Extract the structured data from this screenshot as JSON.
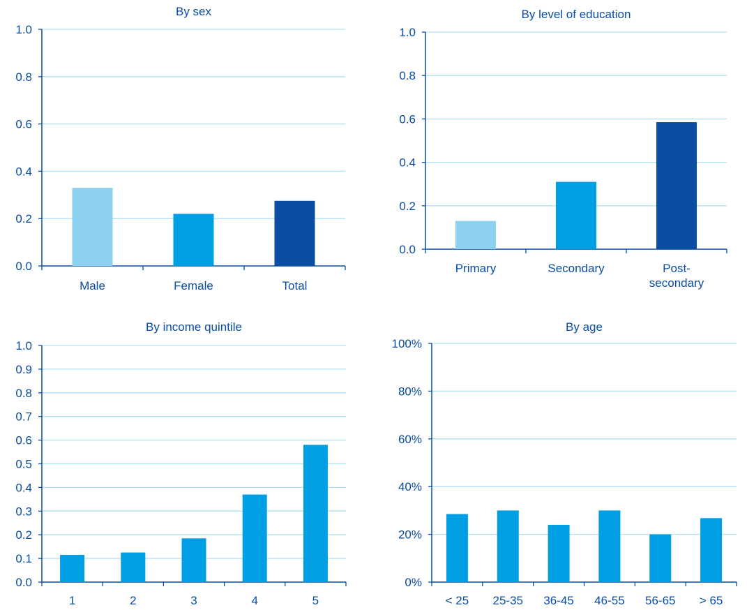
{
  "colors": {
    "axis": "#0a4da2",
    "grid": "#b3e0f2",
    "text": "#0a4da2",
    "light": "#8dd1f0",
    "mid": "#009ee3",
    "dark": "#0a4da2"
  },
  "chart_data": [
    {
      "type": "bar",
      "title": "By sex",
      "categories": [
        "Male",
        "Female",
        "Total"
      ],
      "values": [
        0.33,
        0.22,
        0.275
      ],
      "bar_colors": [
        "light",
        "mid",
        "dark"
      ],
      "ylim": [
        0,
        1.0
      ],
      "yticks": [
        "0.0",
        "0.2",
        "0.4",
        "0.6",
        "0.8",
        "1.0"
      ],
      "grid": true
    },
    {
      "type": "bar",
      "title": "By level of education",
      "categories": [
        [
          "Primary"
        ],
        [
          "Secondary"
        ],
        [
          "Post-",
          "secondary"
        ]
      ],
      "values": [
        0.13,
        0.31,
        0.585
      ],
      "bar_colors": [
        "light",
        "mid",
        "dark"
      ],
      "ylim": [
        0,
        1.0
      ],
      "yticks": [
        "0.0",
        "0.2",
        "0.4",
        "0.6",
        "0.8",
        "1.0"
      ],
      "grid": true
    },
    {
      "type": "bar",
      "title": "By income quintile",
      "categories": [
        "1",
        "2",
        "3",
        "4",
        "5"
      ],
      "values": [
        0.115,
        0.125,
        0.185,
        0.37,
        0.58
      ],
      "bar_colors": [
        "mid",
        "mid",
        "mid",
        "mid",
        "mid"
      ],
      "ylim": [
        0,
        1.0
      ],
      "yticks": [
        "0.0",
        "0.1",
        "0.2",
        "0.3",
        "0.4",
        "0.5",
        "0.6",
        "0.7",
        "0.8",
        "0.9",
        "1.0"
      ],
      "grid": true
    },
    {
      "type": "bar",
      "title": "By age",
      "categories": [
        "< 25",
        "25-35",
        "36-45",
        "46-55",
        "56-65",
        "> 65"
      ],
      "values": [
        28.5,
        30,
        24,
        30,
        20,
        26.8
      ],
      "bar_colors": [
        "mid",
        "mid",
        "mid",
        "mid",
        "mid",
        "mid"
      ],
      "ylim": [
        0,
        100
      ],
      "yticks": [
        "0%",
        "20%",
        "40%",
        "60%",
        "80%",
        "100%"
      ],
      "grid": true
    }
  ]
}
